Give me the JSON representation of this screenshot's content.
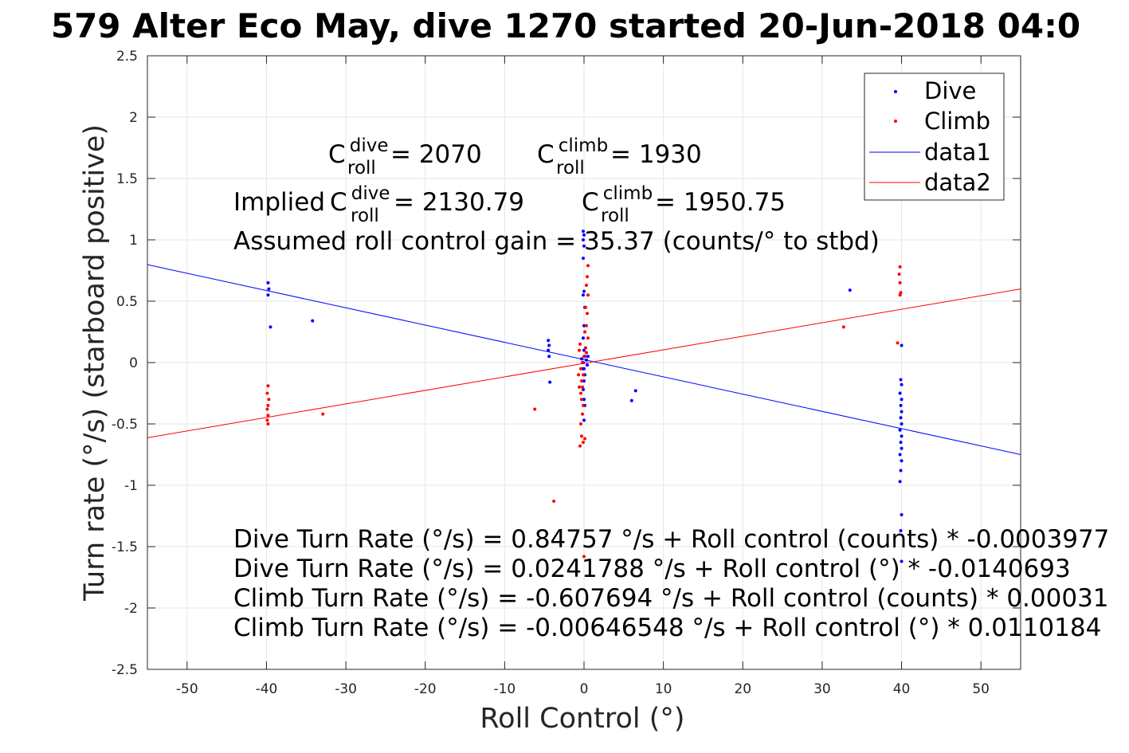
{
  "chart_data": {
    "type": "scatter",
    "title": "579 Alter Eco May, dive 1270 started 20-Jun-2018 04:0",
    "xlabel": "Roll Control (°)",
    "ylabel": "Turn rate (°/s) (starboard positive)",
    "xlim": [
      -55,
      55
    ],
    "ylim": [
      -2.5,
      2.5
    ],
    "grid": true,
    "legend_position": "top-right",
    "x_ticks": [
      -50,
      -40,
      -30,
      -20,
      -10,
      0,
      10,
      20,
      30,
      40,
      50
    ],
    "y_ticks": [
      -2.5,
      -2,
      -1.5,
      -1,
      -0.5,
      0,
      0.5,
      1,
      1.5,
      2,
      2.5
    ],
    "x_tick_labels": [
      "-50",
      "-40",
      "-30",
      "-20",
      "-10",
      "0",
      "10",
      "20",
      "30",
      "40",
      "50"
    ],
    "y_tick_labels": [
      "-2.5",
      "-2",
      "-1.5",
      "-1",
      "-0.5",
      "0",
      "0.5",
      "1",
      "1.5",
      "2",
      "2.5"
    ],
    "colors": {
      "dive": "#0000ff",
      "climb": "#ff0000",
      "grid": "#e6e6e6",
      "axis": "#262626"
    },
    "series": [
      {
        "name": "Dive",
        "kind": "points",
        "color": "#0000ff",
        "points": [
          [
            -39.8,
            0.65
          ],
          [
            -39.7,
            0.6
          ],
          [
            -39.8,
            0.55
          ],
          [
            -39.5,
            0.29
          ],
          [
            -34.2,
            0.34
          ],
          [
            -4.5,
            0.18
          ],
          [
            -4.4,
            0.14
          ],
          [
            -4.5,
            0.1
          ],
          [
            -4.4,
            0.05
          ],
          [
            -4.3,
            -0.16
          ],
          [
            -0.1,
            1.07
          ],
          [
            0.0,
            1.04
          ],
          [
            -0.1,
            1.0
          ],
          [
            0.0,
            0.95
          ],
          [
            -0.1,
            0.85
          ],
          [
            0.0,
            0.58
          ],
          [
            -0.1,
            0.55
          ],
          [
            0.1,
            0.45
          ],
          [
            0.0,
            0.3
          ],
          [
            -0.1,
            0.2
          ],
          [
            0.0,
            0.1
          ],
          [
            0.1,
            0.05
          ],
          [
            -0.1,
            0.0
          ],
          [
            0.0,
            -0.05
          ],
          [
            0.1,
            -0.1
          ],
          [
            0.0,
            -0.15
          ],
          [
            -0.1,
            -0.22
          ],
          [
            0.0,
            -0.3
          ],
          [
            0.1,
            -0.35
          ],
          [
            0.0,
            -0.47
          ],
          [
            0.3,
            0.02
          ],
          [
            0.4,
            -0.02
          ],
          [
            0.5,
            0.05
          ],
          [
            -0.3,
            0.03
          ],
          [
            -0.2,
            -0.05
          ],
          [
            6.0,
            -0.31
          ],
          [
            6.5,
            -0.23
          ],
          [
            33.5,
            0.59
          ],
          [
            40.0,
            0.14
          ],
          [
            39.9,
            -0.14
          ],
          [
            40.0,
            -0.18
          ],
          [
            39.8,
            -0.25
          ],
          [
            40.0,
            -0.3
          ],
          [
            39.9,
            -0.35
          ],
          [
            40.0,
            -0.4
          ],
          [
            39.9,
            -0.45
          ],
          [
            40.0,
            -0.5
          ],
          [
            39.8,
            -0.55
          ],
          [
            40.0,
            -0.6
          ],
          [
            39.9,
            -0.65
          ],
          [
            40.0,
            -0.7
          ],
          [
            39.8,
            -0.75
          ],
          [
            40.0,
            -0.8
          ],
          [
            39.9,
            -0.88
          ],
          [
            39.8,
            -0.97
          ],
          [
            40.0,
            -1.24
          ],
          [
            39.9,
            -1.37
          ],
          [
            40.0,
            -1.62
          ]
        ]
      },
      {
        "name": "Climb",
        "kind": "points",
        "color": "#ff0000",
        "points": [
          [
            -39.8,
            -0.19
          ],
          [
            -39.9,
            -0.25
          ],
          [
            -39.7,
            -0.3
          ],
          [
            -39.8,
            -0.35
          ],
          [
            -39.9,
            -0.38
          ],
          [
            -39.8,
            -0.43
          ],
          [
            -39.9,
            -0.47
          ],
          [
            -39.8,
            -0.5
          ],
          [
            -32.9,
            -0.42
          ],
          [
            -6.2,
            -0.38
          ],
          [
            -3.8,
            -1.13
          ],
          [
            0.5,
            0.79
          ],
          [
            0.4,
            0.7
          ],
          [
            0.3,
            0.63
          ],
          [
            0.5,
            0.55
          ],
          [
            0.2,
            0.45
          ],
          [
            0.4,
            0.4
          ],
          [
            0.3,
            0.3
          ],
          [
            0.1,
            0.25
          ],
          [
            0.5,
            0.2
          ],
          [
            0.2,
            0.12
          ],
          [
            0.3,
            0.08
          ],
          [
            0.0,
            0.05
          ],
          [
            -0.2,
            0.0
          ],
          [
            -0.4,
            -0.05
          ],
          [
            -0.1,
            -0.1
          ],
          [
            -0.3,
            -0.15
          ],
          [
            -0.2,
            -0.2
          ],
          [
            -0.4,
            -0.25
          ],
          [
            -0.3,
            -0.3
          ],
          [
            -0.1,
            -0.35
          ],
          [
            -0.2,
            -0.42
          ],
          [
            -0.4,
            -0.5
          ],
          [
            -0.3,
            -0.6
          ],
          [
            -0.5,
            -0.68
          ],
          [
            -0.1,
            -0.65
          ],
          [
            0.1,
            -0.62
          ],
          [
            0.0,
            -1.58
          ],
          [
            -0.6,
            0.1
          ],
          [
            -0.5,
            0.15
          ],
          [
            -0.7,
            -0.1
          ],
          [
            -0.6,
            -0.2
          ],
          [
            32.7,
            0.29
          ],
          [
            39.5,
            0.16
          ],
          [
            39.8,
            0.78
          ],
          [
            39.7,
            0.72
          ],
          [
            39.8,
            0.65
          ],
          [
            39.9,
            0.57
          ],
          [
            39.8,
            0.55
          ]
        ]
      },
      {
        "name": "data1",
        "kind": "line",
        "color": "#0000ff",
        "intercept": 0.0241788,
        "slope": -0.0140693
      },
      {
        "name": "data2",
        "kind": "line",
        "color": "#ff0000",
        "intercept": -0.00646548,
        "slope": 0.0110184
      }
    ],
    "annotations": {
      "c_roll_dive": {
        "base": "C",
        "sup": "dive",
        "sub": "roll",
        "value": " = 2070"
      },
      "c_roll_climb": {
        "base": "C",
        "sup": "climb",
        "sub": "roll",
        "value": " = 1930"
      },
      "implied_prefix": "Implied ",
      "implied_dive": {
        "base": "C",
        "sup": "dive",
        "sub": "roll",
        "value": " = 2130.79"
      },
      "implied_climb": {
        "base": "C",
        "sup": "climb",
        "sub": "roll",
        "value": " = 1950.75"
      },
      "gain": "Assumed roll control gain = 35.37 (counts/° to stbd)",
      "fit_lines": [
        "Dive Turn Rate (°/s) = 0.84757 °/s + Roll control (counts) * -0.0003977",
        "Dive Turn Rate (°/s) = 0.0241788 °/s + Roll control (°) * -0.0140693",
        "Climb Turn Rate (°/s) = -0.607694 °/s + Roll control (counts) * 0.00031",
        "Climb Turn Rate (°/s) = -0.00646548 °/s + Roll control (°) * 0.0110184"
      ]
    },
    "legend": [
      {
        "label": "Dive",
        "marker": "dot",
        "color": "#0000ff"
      },
      {
        "label": "Climb",
        "marker": "dot",
        "color": "#ff0000"
      },
      {
        "label": "data1",
        "marker": "line",
        "color": "#0000ff"
      },
      {
        "label": "data2",
        "marker": "line",
        "color": "#ff0000"
      }
    ]
  }
}
